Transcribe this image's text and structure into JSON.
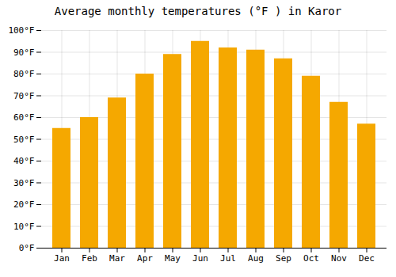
{
  "chart_data": {
    "type": "bar",
    "title": "Average monthly temperatures (°F ) in Karor",
    "categories": [
      "Jan",
      "Feb",
      "Mar",
      "Apr",
      "May",
      "Jun",
      "Jul",
      "Aug",
      "Sep",
      "Oct",
      "Nov",
      "Dec"
    ],
    "values": [
      55,
      60,
      69,
      80,
      89,
      95,
      92,
      91,
      87,
      79,
      67,
      57
    ],
    "color": "#F5A800",
    "ylim": [
      0,
      100
    ],
    "yticks": [
      {
        "value": 0,
        "label": "0°F"
      },
      {
        "value": 10,
        "label": "10°F"
      },
      {
        "value": 20,
        "label": "20°F"
      },
      {
        "value": 30,
        "label": "30°F"
      },
      {
        "value": 40,
        "label": "40°F"
      },
      {
        "value": 50,
        "label": "50°F"
      },
      {
        "value": 60,
        "label": "60°F"
      },
      {
        "value": 70,
        "label": "70°F"
      },
      {
        "value": 80,
        "label": "80°F"
      },
      {
        "value": 90,
        "label": "90°F"
      },
      {
        "value": 100,
        "label": "100°F"
      }
    ],
    "grid": true
  }
}
